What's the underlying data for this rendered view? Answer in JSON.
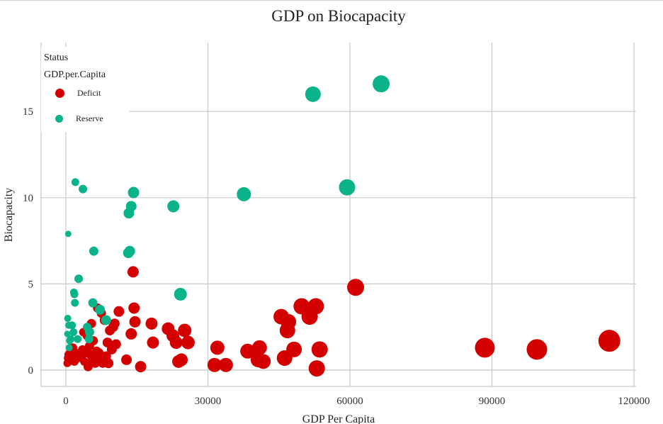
{
  "chart_data": {
    "type": "scatter",
    "title": "GDP on Biocapacity",
    "xlabel": "GDP Per Capita",
    "ylabel": "Biocapacity",
    "xlim": [
      -5000,
      120000
    ],
    "ylim": [
      -1,
      19
    ],
    "xticks": [
      0,
      30000,
      60000,
      90000,
      120000
    ],
    "xtick_labels": [
      "0",
      "30000",
      "60000",
      "90000",
      "120000"
    ],
    "yticks": [
      0,
      5,
      10,
      15
    ],
    "ytick_labels": [
      "0",
      "5",
      "10",
      "15"
    ],
    "grid": true,
    "legend": {
      "position": "top-left",
      "title_lines": [
        "Status",
        "GDP.per.Capita"
      ]
    },
    "series": [
      {
        "name": "Deficit",
        "color": "#d40000",
        "points": [
          [
            300,
            0.4
          ],
          [
            400,
            0.7
          ],
          [
            500,
            0.9
          ],
          [
            600,
            0.5
          ],
          [
            700,
            0.6
          ],
          [
            900,
            1.0
          ],
          [
            1000,
            0.6
          ],
          [
            1200,
            0.8
          ],
          [
            1500,
            1.3
          ],
          [
            1800,
            0.5
          ],
          [
            2100,
            0.9
          ],
          [
            2500,
            0.7
          ],
          [
            2800,
            1.0
          ],
          [
            3200,
            0.8
          ],
          [
            3500,
            1.2
          ],
          [
            3700,
            2.2
          ],
          [
            3900,
            0.5
          ],
          [
            4200,
            1.0
          ],
          [
            4500,
            2.0
          ],
          [
            4700,
            0.2
          ],
          [
            5000,
            1.4
          ],
          [
            5200,
            0.9
          ],
          [
            5400,
            2.7
          ],
          [
            5600,
            0.6
          ],
          [
            5800,
            1.7
          ],
          [
            6000,
            0.9
          ],
          [
            6200,
            0.4
          ],
          [
            6500,
            1.1
          ],
          [
            6700,
            3.6
          ],
          [
            7000,
            1.0
          ],
          [
            7300,
            0.8
          ],
          [
            7500,
            3.3
          ],
          [
            7800,
            0.4
          ],
          [
            8200,
            2.9
          ],
          [
            8500,
            0.8
          ],
          [
            8800,
            1.6
          ],
          [
            9000,
            0.4
          ],
          [
            9300,
            2.3
          ],
          [
            9700,
            1.2
          ],
          [
            10000,
            2.5
          ],
          [
            10300,
            2.7
          ],
          [
            10600,
            1.5
          ],
          [
            11200,
            3.4
          ],
          [
            12800,
            0.6
          ],
          [
            13800,
            2.1
          ],
          [
            14200,
            5.7
          ],
          [
            14400,
            3.6
          ],
          [
            14600,
            2.8
          ],
          [
            15800,
            0.2
          ],
          [
            18100,
            2.7
          ],
          [
            18400,
            1.6
          ],
          [
            21600,
            2.4
          ],
          [
            22600,
            2.0
          ],
          [
            23300,
            1.6
          ],
          [
            23800,
            0.5
          ],
          [
            24400,
            0.6
          ],
          [
            25100,
            2.3
          ],
          [
            25800,
            1.6
          ],
          [
            31400,
            0.3
          ],
          [
            32000,
            1.3
          ],
          [
            33800,
            0.3
          ],
          [
            38400,
            1.1
          ],
          [
            40600,
            0.6
          ],
          [
            40900,
            1.3
          ],
          [
            41700,
            0.5
          ],
          [
            45500,
            3.1
          ],
          [
            46200,
            0.7
          ],
          [
            46800,
            2.3
          ],
          [
            47000,
            2.8
          ],
          [
            48200,
            1.2
          ],
          [
            49800,
            3.7
          ],
          [
            51500,
            3.1
          ],
          [
            52800,
            3.7
          ],
          [
            53000,
            0.1
          ],
          [
            53600,
            1.2
          ],
          [
            61200,
            4.8
          ],
          [
            88500,
            1.3
          ],
          [
            99500,
            1.2
          ],
          [
            114800,
            1.7
          ]
        ],
        "sizes": [
          11,
          11,
          11,
          12,
          12,
          12,
          12,
          12,
          12,
          12,
          12,
          12,
          12,
          12,
          12,
          12,
          12,
          13,
          13,
          13,
          13,
          13,
          13,
          13,
          13,
          13,
          13,
          13,
          13,
          13,
          13,
          13,
          13,
          14,
          14,
          14,
          14,
          14,
          14,
          14,
          14,
          14,
          15,
          15,
          16,
          16,
          16,
          16,
          16,
          17,
          17,
          18,
          18,
          18,
          18,
          18,
          19,
          19,
          20,
          20,
          20,
          21,
          21,
          21,
          21,
          22,
          22,
          22,
          22,
          22,
          23,
          23,
          23,
          23,
          23,
          24,
          28,
          29,
          31
        ]
      },
      {
        "name": "Reserve",
        "color": "#0bb38a",
        "points": [
          [
            300,
            2.1
          ],
          [
            400,
            3.0
          ],
          [
            500,
            7.9
          ],
          [
            600,
            2.6
          ],
          [
            700,
            1.3
          ],
          [
            800,
            1.7
          ],
          [
            1000,
            1.8
          ],
          [
            1300,
            2.6
          ],
          [
            1600,
            2.2
          ],
          [
            1700,
            4.5
          ],
          [
            1800,
            4.4
          ],
          [
            1900,
            3.9
          ],
          [
            2000,
            10.9
          ],
          [
            2500,
            1.8
          ],
          [
            2700,
            5.3
          ],
          [
            3600,
            10.5
          ],
          [
            4500,
            2.5
          ],
          [
            4900,
            1.8
          ],
          [
            5000,
            2.2
          ],
          [
            5700,
            3.9
          ],
          [
            5900,
            6.9
          ],
          [
            7200,
            3.5
          ],
          [
            8500,
            2.9
          ],
          [
            13200,
            6.8
          ],
          [
            13300,
            9.1
          ],
          [
            13500,
            6.9
          ],
          [
            13800,
            9.5
          ],
          [
            14300,
            10.3
          ],
          [
            22700,
            9.5
          ],
          [
            24200,
            4.4
          ],
          [
            37600,
            10.2
          ],
          [
            52200,
            16.0
          ],
          [
            59400,
            10.6
          ],
          [
            66600,
            16.6
          ]
        ],
        "sizes": [
          9,
          10,
          9,
          10,
          10,
          10,
          11,
          11,
          11,
          11,
          11,
          11,
          11,
          11,
          12,
          12,
          12,
          12,
          13,
          13,
          13,
          14,
          14,
          15,
          15,
          15,
          15,
          16,
          17,
          18,
          20,
          22,
          23,
          24
        ]
      }
    ]
  }
}
